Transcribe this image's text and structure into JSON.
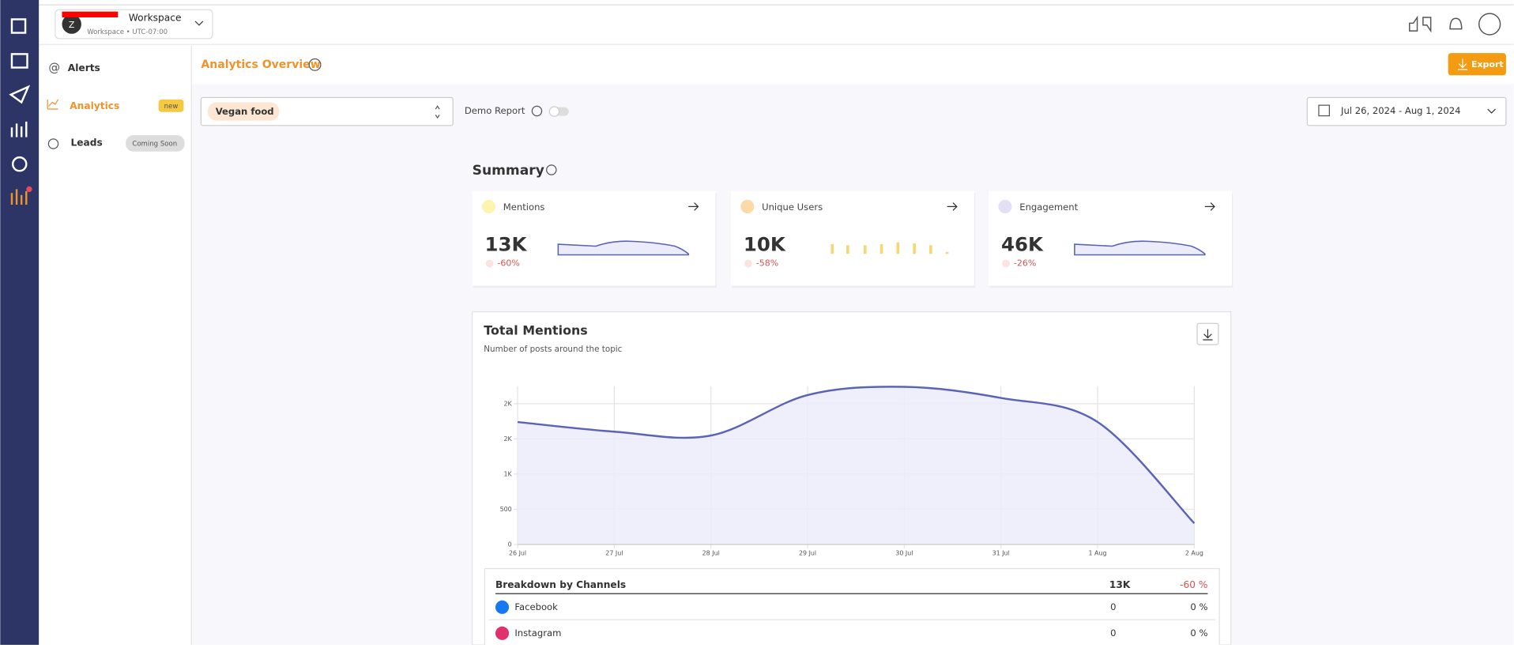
{
  "workspace": {
    "initial": "Z",
    "name": "Workspace",
    "subtitle": "Workspace • UTC-07:00"
  },
  "sidebar": [
    {
      "label": "Alerts"
    },
    {
      "label": "Analytics",
      "badge": "new"
    },
    {
      "label": "Leads",
      "badge": "Coming Soon"
    }
  ],
  "page_title": "Analytics Overview",
  "export": "Export",
  "topic": "Vegan food",
  "demo_report": "Demo Report",
  "date_range": "Jul 26, 2024 - Aug 1, 2024",
  "summary": {
    "title": "Summary",
    "cards": [
      {
        "label": "Mentions",
        "value": "13K",
        "change": "-60%"
      },
      {
        "label": "Unique Users",
        "value": "10K",
        "change": "-58%"
      },
      {
        "label": "Engagement",
        "value": "46K",
        "change": "-26%"
      }
    ]
  },
  "chart_data": {
    "type": "line",
    "title": "Total Mentions",
    "subtitle": "Number of posts around the topic",
    "categories": [
      "26 Jul",
      "27 Jul",
      "28 Jul",
      "29 Jul",
      "30 Jul",
      "31 Jul",
      "1 Aug",
      "2 Aug"
    ],
    "values": [
      1740,
      1603,
      1548,
      2123,
      2240,
      2082,
      1740,
      301
    ],
    "color": "#5b63b7",
    "ylim": [
      0,
      2250
    ],
    "yticks": [
      0,
      500,
      {
        "value": 1000,
        "label": "1K"
      },
      {
        "value": 1500,
        "label": "2K"
      },
      {
        "value": 2000,
        "label": "2K"
      }
    ],
    "grid": true
  },
  "breakdown": {
    "title": "Breakdown by Channels",
    "total": "13K",
    "change": "-60 %",
    "rows": [
      {
        "name": "Facebook",
        "value": 0,
        "change": "0 %"
      },
      {
        "name": "Instagram",
        "value": 0,
        "change": "0 %"
      }
    ]
  }
}
